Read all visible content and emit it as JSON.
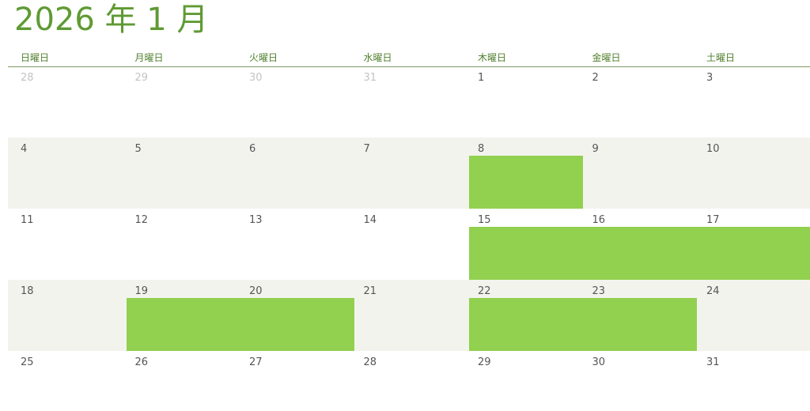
{
  "title": "2026 年 1 月",
  "weekdays": [
    "日曜日",
    "月曜日",
    "火曜日",
    "水曜日",
    "木曜日",
    "金曜日",
    "土曜日"
  ],
  "weeks": [
    [
      28,
      29,
      30,
      31,
      1,
      2,
      3
    ],
    [
      4,
      5,
      6,
      7,
      8,
      9,
      10
    ],
    [
      11,
      12,
      13,
      14,
      15,
      16,
      17
    ],
    [
      18,
      19,
      20,
      21,
      22,
      23,
      24
    ],
    [
      25,
      26,
      27,
      28,
      29,
      30,
      31
    ]
  ]
}
